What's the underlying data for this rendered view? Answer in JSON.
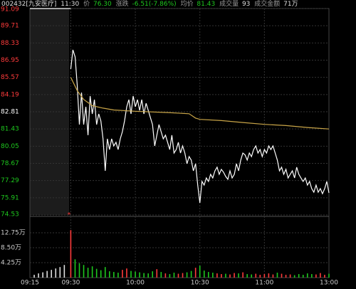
{
  "chart_data": {
    "type": "line",
    "header": {
      "code": "002432[九安医疗]",
      "time": "11:30",
      "price_label": "价",
      "price": "76.30",
      "change_label": "涨跌",
      "change": "-6.51(-7.86%)",
      "avg_label": "均价",
      "avg": "81.43",
      "vol_label": "成交量",
      "vol": "93",
      "amount_label": "成交金额",
      "amount": "71万"
    },
    "xlim": [
      -19,
      120
    ],
    "xticks": [
      {
        "value": -19,
        "label": "09:15"
      },
      {
        "value": 0,
        "label": "09:30"
      },
      {
        "value": 30,
        "label": "10:00"
      },
      {
        "value": 60,
        "label": "10:30"
      },
      {
        "value": 90,
        "label": "11:00"
      },
      {
        "value": 120,
        "label": "13:00"
      }
    ],
    "ylim": [
      74.53,
      91.09
    ],
    "yticks": [
      91.09,
      89.71,
      88.33,
      86.95,
      85.57,
      84.19,
      82.81,
      81.43,
      80.05,
      78.67,
      77.29,
      75.91,
      74.53
    ],
    "prev_close": 82.81,
    "up_color": "#ff3b3b",
    "down_color": "#1ec81e",
    "grid": true,
    "series": [
      {
        "color": "#ffffff",
        "x": [
          0,
          1,
          2,
          3,
          4,
          5,
          6,
          7,
          8,
          9,
          10,
          11,
          12,
          13,
          14,
          15,
          16,
          17,
          18,
          19,
          20,
          21,
          22,
          23,
          24,
          25,
          26,
          27,
          28,
          29,
          30,
          31,
          32,
          33,
          34,
          35,
          36,
          37,
          38,
          39,
          40,
          41,
          42,
          43,
          44,
          45,
          46,
          47,
          48,
          49,
          50,
          51,
          52,
          53,
          54,
          55,
          56,
          57,
          58,
          59,
          60,
          61,
          62,
          63,
          64,
          65,
          66,
          67,
          68,
          69,
          70,
          71,
          72,
          73,
          74,
          75,
          76,
          77,
          78,
          79,
          80,
          81,
          82,
          83,
          84,
          85,
          86,
          87,
          88,
          89,
          90,
          91,
          92,
          93,
          94,
          95,
          96,
          97,
          98,
          99,
          100,
          101,
          102,
          103,
          104,
          105,
          106,
          107,
          108,
          109,
          110,
          111,
          112,
          113,
          114,
          115,
          116,
          117,
          118,
          119,
          120
        ],
        "values": [
          86.24,
          87.78,
          87.21,
          84.92,
          81.78,
          84.35,
          81.78,
          83.21,
          80.93,
          84.07,
          82.64,
          83.78,
          81.78,
          82.64,
          82.07,
          80.64,
          78.07,
          80.64,
          79.78,
          80.64,
          80.07,
          80.36,
          79.78,
          80.64,
          81.21,
          82.07,
          83.21,
          83.78,
          82.64,
          84.07,
          83.21,
          83.78,
          82.92,
          83.78,
          82.64,
          83.49,
          82.92,
          82.35,
          81.78,
          80.07,
          80.93,
          81.78,
          81.21,
          80.64,
          80.93,
          80.36,
          79.78,
          80.93,
          79.5,
          79.78,
          80.36,
          79.5,
          80.07,
          79.5,
          78.64,
          79.21,
          78.93,
          78.07,
          78.64,
          76.93,
          75.5,
          77.22,
          76.93,
          77.5,
          77.22,
          77.79,
          77.5,
          78.07,
          78.36,
          77.79,
          78.19,
          77.96,
          77.62,
          77.39,
          78.07,
          77.5,
          77.79,
          78.64,
          78.07,
          78.93,
          79.5,
          79.35,
          78.93,
          79.5,
          79.21,
          79.78,
          80.07,
          79.5,
          79.78,
          79.21,
          79.78,
          79.5,
          80.07,
          79.78,
          80.07,
          79.5,
          78.93,
          78.07,
          78.36,
          77.79,
          78.19,
          77.5,
          77.79,
          78.07,
          77.5,
          78.36,
          77.79,
          77.5,
          77.22,
          77.5,
          76.93,
          77.22,
          76.64,
          76.36,
          76.93,
          76.36,
          76.64,
          76.24,
          76.64,
          77.22,
          76.3
        ]
      },
      {
        "color": "#c9a548",
        "x": [
          0,
          3,
          6,
          10,
          15,
          20,
          30,
          45,
          55,
          58,
          60,
          70,
          80,
          90,
          100,
          110,
          120
        ],
        "values": [
          85.57,
          84.5,
          83.8,
          83.3,
          83.1,
          82.95,
          82.85,
          82.75,
          82.65,
          82.3,
          82.2,
          82.1,
          81.95,
          81.8,
          81.7,
          81.55,
          81.43
        ]
      },
      {
        "color": "#ffffff",
        "x": [
          -19,
          0
        ],
        "values": [
          91.09,
          91.09
        ]
      }
    ],
    "vol_ylim": [
      0,
      17.4
    ],
    "vol_yticks": [
      {
        "value": 12.75,
        "label": "12.75万"
      },
      {
        "value": 8.5,
        "label": "8.50万"
      },
      {
        "value": 4.25,
        "label": "4.25万"
      }
    ],
    "volume": {
      "x": [
        0,
        2,
        4,
        6,
        8,
        10,
        12,
        14,
        16,
        18,
        20,
        22,
        24,
        26,
        28,
        30,
        32,
        34,
        36,
        38,
        40,
        42,
        44,
        46,
        48,
        50,
        52,
        54,
        56,
        58,
        60,
        62,
        64,
        66,
        68,
        70,
        72,
        74,
        76,
        78,
        80,
        82,
        84,
        86,
        88,
        90,
        92,
        94,
        96,
        98,
        100,
        102,
        104,
        106,
        108,
        110,
        112,
        114,
        116,
        118,
        120
      ],
      "values": [
        13.5,
        5.2,
        4.1,
        3.6,
        2.8,
        3.2,
        2.5,
        2.1,
        3.0,
        1.8,
        1.6,
        1.4,
        2.2,
        2.6,
        1.9,
        1.7,
        1.5,
        1.3,
        1.2,
        1.8,
        2.4,
        1.6,
        1.2,
        1.0,
        1.4,
        1.1,
        1.3,
        1.5,
        1.9,
        2.8,
        3.4,
        2.0,
        1.6,
        1.4,
        1.2,
        1.0,
        1.1,
        0.9,
        1.3,
        1.2,
        1.5,
        1.0,
        0.9,
        1.1,
        0.8,
        1.0,
        1.2,
        0.9,
        1.4,
        1.1,
        0.8,
        0.9,
        0.7,
        1.0,
        0.8,
        1.2,
        1.0,
        0.9,
        1.3,
        0.8,
        1.1
      ]
    },
    "auction_volume": {
      "color": "#dddddd",
      "x": [
        -17,
        -15,
        -13,
        -11,
        -9,
        -7,
        -5,
        -3
      ],
      "values": [
        0.8,
        1.2,
        1.5,
        1.9,
        2.2,
        2.6,
        3.0,
        3.6
      ]
    }
  }
}
